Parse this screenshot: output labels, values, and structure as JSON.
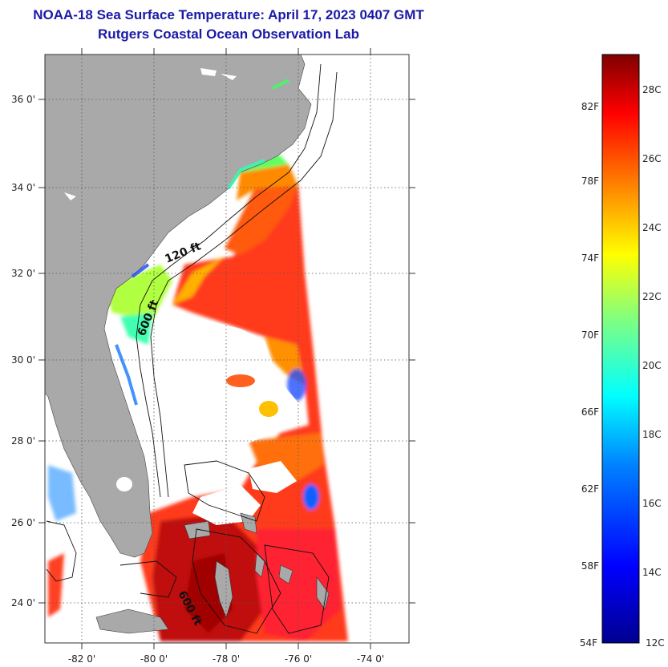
{
  "header": {
    "title": "NOAA-18 Sea Surface Temperature:  April 17, 2023 0407 GMT",
    "subtitle": "Rutgers Coastal Ocean Observation Lab"
  },
  "map": {
    "lon_range": [
      -83,
      -73
    ],
    "lat_range": [
      23,
      37
    ],
    "lon_ticks": [
      "-82 0'",
      "-80 0'",
      "-78 0'",
      "-76 0'",
      "-74 0'"
    ],
    "lat_ticks": [
      "24 0'",
      "26 0'",
      "28 0'",
      "30 0'",
      "32 0'",
      "34 0'",
      "36 0'"
    ],
    "contour_labels": [
      "120 ft",
      "600 ft",
      "600 ft"
    ],
    "colors": {
      "land": "#a9a9a9",
      "no_data": "#ffffff",
      "grid": "#555555"
    }
  },
  "colorbar": {
    "fahrenheit_labels": [
      "82F",
      "78F",
      "74F",
      "70F",
      "66F",
      "62F",
      "58F",
      "54F"
    ],
    "celsius_labels": [
      "28C",
      "26C",
      "24C",
      "22C",
      "20C",
      "18C",
      "16C",
      "14C",
      "12C"
    ],
    "range_c": [
      12,
      29
    ]
  }
}
